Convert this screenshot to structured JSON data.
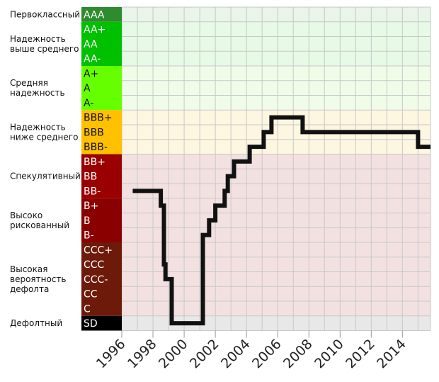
{
  "chart_data": {
    "type": "line",
    "title": "",
    "xlabel": "",
    "ylabel": "",
    "ratings": [
      "AAA",
      "AA+",
      "AA",
      "AA-",
      "A+",
      "A",
      "A-",
      "BBB+",
      "BBB",
      "BBB-",
      "BB+",
      "BB",
      "BB-",
      "B+",
      "B",
      "B-",
      "CCC+",
      "CCC",
      "CCC-",
      "CC",
      "C",
      "SD"
    ],
    "groups": [
      {
        "label": [
          "Первоклассный"
        ],
        "from": "AAA",
        "to": "AAA",
        "color": "#2e8b2e",
        "bg": "#e8f5e8"
      },
      {
        "label": [
          "Надежность",
          "выше среднего"
        ],
        "from": "AA+",
        "to": "AA-",
        "color": "#00c000",
        "bg": "#e6fae6"
      },
      {
        "label": [
          "Средняя",
          "надежность"
        ],
        "from": "A+",
        "to": "A-",
        "color": "#66ff00",
        "bg": "#f0fce8"
      },
      {
        "label": [
          "Надежность",
          "ниже среднего"
        ],
        "from": "BBB+",
        "to": "BBB-",
        "color": "#ffc000",
        "bg": "#fdf6e0"
      },
      {
        "label": [
          "Спекулятивный"
        ],
        "from": "BB+",
        "to": "BB-",
        "color": "#9b0000",
        "bg": "#f3e1e1"
      },
      {
        "label": [
          "Высоко",
          "рискованный"
        ],
        "from": "B+",
        "to": "B-",
        "color": "#8a0000",
        "bg": "#f3e1e1"
      },
      {
        "label": [
          "Высокая",
          "вероятность",
          "дефолта"
        ],
        "from": "CCC+",
        "to": "C",
        "color": "#6e1a0a",
        "bg": "#f3e1e1"
      },
      {
        "label": [
          "Дефолтный"
        ],
        "from": "SD",
        "to": "SD",
        "color": "#000000",
        "bg": "#e8e8e8"
      }
    ],
    "x_ticks": [
      "1996",
      "1998",
      "2000",
      "2002",
      "2004",
      "2006",
      "2008",
      "2010",
      "2012",
      "2014"
    ],
    "x_range": [
      1996,
      2015.8
    ],
    "series": [
      {
        "points": [
          [
            1996.7,
            "BB-"
          ],
          [
            1998.5,
            "BB-"
          ],
          [
            1998.5,
            "B+"
          ],
          [
            1998.7,
            "B+"
          ],
          [
            1998.7,
            "CCC"
          ],
          [
            1998.8,
            "CCC"
          ],
          [
            1998.8,
            "CCC-"
          ],
          [
            1999.2,
            "CCC-"
          ],
          [
            1999.2,
            "SD"
          ],
          [
            2001.2,
            "SD"
          ],
          [
            2001.2,
            "B-"
          ],
          [
            2001.6,
            "B-"
          ],
          [
            2001.6,
            "B"
          ],
          [
            2002.0,
            "B"
          ],
          [
            2002.0,
            "B+"
          ],
          [
            2002.6,
            "B+"
          ],
          [
            2002.6,
            "BB-"
          ],
          [
            2002.8,
            "BB-"
          ],
          [
            2002.8,
            "BB"
          ],
          [
            2003.2,
            "BB"
          ],
          [
            2003.2,
            "BB+"
          ],
          [
            2004.2,
            "BB+"
          ],
          [
            2004.2,
            "BBB-"
          ],
          [
            2005.1,
            "BBB-"
          ],
          [
            2005.1,
            "BBB"
          ],
          [
            2005.6,
            "BBB"
          ],
          [
            2005.6,
            "BBB+"
          ],
          [
            2007.6,
            "BBB+"
          ],
          [
            2007.6,
            "BBB"
          ],
          [
            2015.0,
            "BBB"
          ],
          [
            2015.0,
            "BBB-"
          ],
          [
            2015.8,
            "BBB-"
          ]
        ]
      }
    ],
    "grid": true,
    "line_color": "#111111"
  }
}
